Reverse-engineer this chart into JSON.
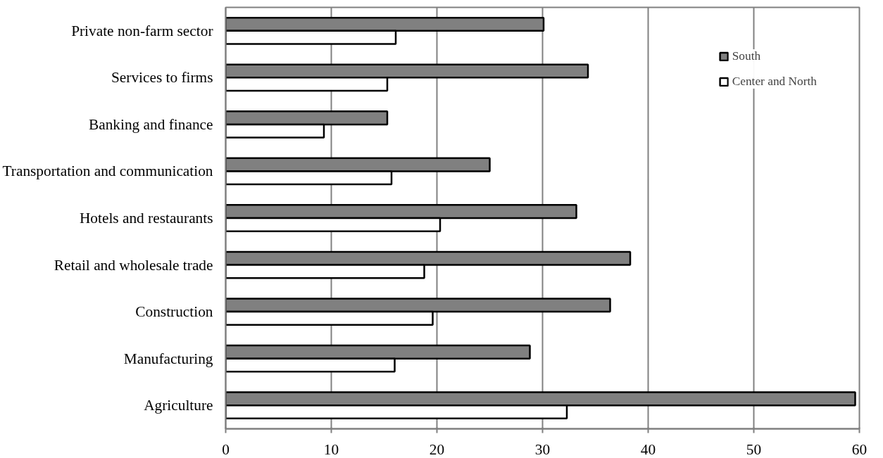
{
  "chart_data": {
    "type": "bar",
    "orientation": "horizontal",
    "categories": [
      "Private non-farm sector",
      "Services to firms",
      "Banking and finance",
      "Transportation and communication",
      "Hotels and restaurants",
      "Retail and wholesale trade",
      "Construction",
      "Manufacturing",
      "Agriculture"
    ],
    "series": [
      {
        "name": "South",
        "color": "#808080",
        "values": [
          30.1,
          34.3,
          15.3,
          25.0,
          33.2,
          38.3,
          36.4,
          28.8,
          59.6
        ]
      },
      {
        "name": "Center and North",
        "color": "#ffffff",
        "values": [
          16.1,
          15.3,
          9.3,
          15.7,
          20.3,
          18.8,
          19.6,
          16.0,
          32.3
        ]
      }
    ],
    "xlim": [
      0,
      60
    ],
    "xticks": [
      0,
      10,
      20,
      30,
      40,
      50,
      60
    ],
    "grid": "x",
    "legend": "top right"
  }
}
